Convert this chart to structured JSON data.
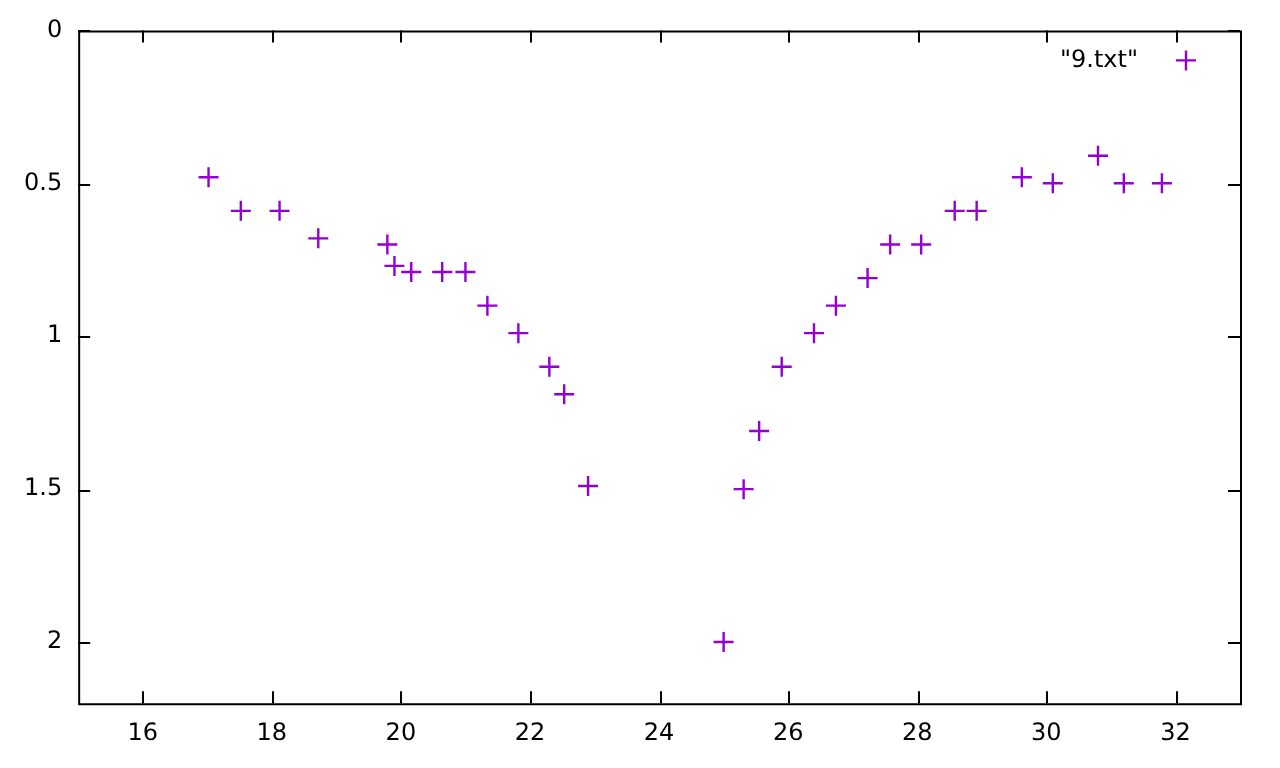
{
  "chart_data": {
    "type": "scatter",
    "xlim": [
      15,
      33
    ],
    "ylim": [
      2.2,
      0
    ],
    "xticks": [
      16,
      18,
      20,
      22,
      24,
      26,
      28,
      30,
      32
    ],
    "yticks": [
      0,
      0.5,
      1,
      1.5,
      2
    ],
    "grid": false,
    "legend": "top right",
    "marker": "cross",
    "series": [
      {
        "name": "\"9.txt\"",
        "color": "#9400d3",
        "x": [
          17.02,
          17.52,
          18.12,
          18.72,
          19.79,
          19.9,
          20.16,
          20.64,
          21.0,
          21.34,
          21.82,
          22.3,
          22.53,
          22.9,
          25.0,
          25.31,
          25.55,
          25.9,
          26.4,
          26.74,
          27.23,
          27.58,
          28.06,
          28.58,
          28.92,
          29.62,
          30.1,
          30.8,
          31.2,
          31.79
        ],
        "values": [
          0.48,
          0.59,
          0.59,
          0.68,
          0.7,
          0.77,
          0.79,
          0.79,
          0.79,
          0.9,
          0.99,
          1.1,
          1.19,
          1.49,
          2.0,
          1.5,
          1.31,
          1.1,
          0.99,
          0.9,
          0.81,
          0.7,
          0.7,
          0.59,
          0.59,
          0.48,
          0.5,
          0.41,
          0.5,
          0.5
        ]
      }
    ]
  }
}
